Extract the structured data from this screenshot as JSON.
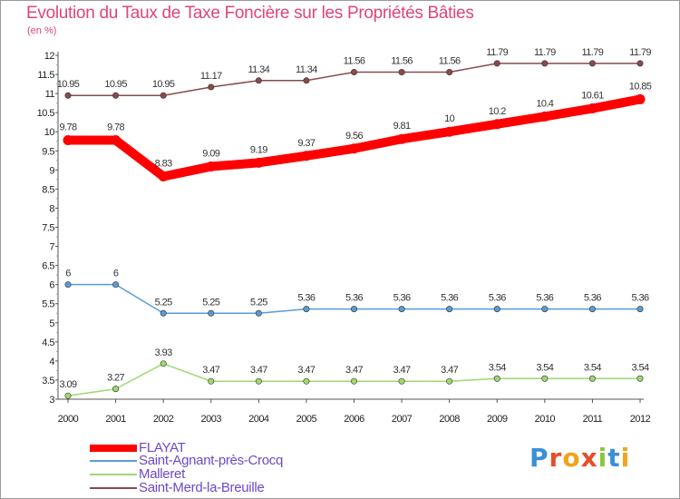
{
  "chart_data": {
    "type": "line",
    "title": "Evolution du Taux de Taxe Foncière sur les Propriétés Bâties",
    "ylabel": "(en %)",
    "xlabel": "",
    "x": [
      "2000",
      "2001",
      "2002",
      "2003",
      "2004",
      "2005",
      "2006",
      "2007",
      "2008",
      "2009",
      "2010",
      "2011",
      "2012"
    ],
    "ylim": [
      3,
      12
    ],
    "yticks": [
      "3",
      "3.5",
      "4",
      "4.5",
      "5",
      "5.5",
      "6",
      "6.5",
      "7",
      "7.5",
      "8",
      "8.5",
      "9",
      "9.5",
      "10",
      "10.5",
      "11",
      "11.5",
      "12"
    ],
    "grid": false,
    "legend_position": "bottom-left",
    "series": [
      {
        "name": "FLAYAT",
        "color": "#ff0000",
        "values": [
          9.78,
          9.78,
          8.83,
          9.09,
          9.19,
          9.37,
          9.56,
          9.81,
          10,
          10.2,
          10.4,
          10.61,
          10.85
        ],
        "labels": [
          "9.78",
          "9.78",
          "8.83",
          "9.09",
          "9.19",
          "9.37",
          "9.56",
          "9.81",
          "10",
          "10.2",
          "10.4",
          "10.61",
          "10.85"
        ]
      },
      {
        "name": "Saint-Agnant-près-Crocq",
        "color": "#5b9bd5",
        "values": [
          6,
          6,
          5.25,
          5.25,
          5.25,
          5.36,
          5.36,
          5.36,
          5.36,
          5.36,
          5.36,
          5.36,
          5.36
        ],
        "labels": [
          "6",
          "6",
          "5.25",
          "5.25",
          "5.25",
          "5.36",
          "5.36",
          "5.36",
          "5.36",
          "5.36",
          "5.36",
          "5.36",
          "5.36"
        ]
      },
      {
        "name": "Malleret",
        "color": "#9ed870",
        "values": [
          3.09,
          3.27,
          3.93,
          3.47,
          3.47,
          3.47,
          3.47,
          3.47,
          3.47,
          3.54,
          3.54,
          3.54,
          3.54
        ],
        "labels": [
          "3.09",
          "3.27",
          "3.93",
          "3.47",
          "3.47",
          "3.47",
          "3.47",
          "3.47",
          "3.47",
          "3.54",
          "3.54",
          "3.54",
          "3.54"
        ]
      },
      {
        "name": "Saint-Merd-la-Breuille",
        "color": "#8a4a4a",
        "values": [
          10.95,
          10.95,
          10.95,
          11.17,
          11.34,
          11.34,
          11.56,
          11.56,
          11.56,
          11.79,
          11.79,
          11.79,
          11.79
        ],
        "labels": [
          "10.95",
          "10.95",
          "10.95",
          "11.17",
          "11.34",
          "11.34",
          "11.56",
          "11.56",
          "11.56",
          "11.79",
          "11.79",
          "11.79",
          "11.79"
        ]
      }
    ]
  },
  "logo": {
    "letters": [
      {
        "ch": "P",
        "color": "#3a8fd8"
      },
      {
        "ch": "r",
        "color": "#e84d2a"
      },
      {
        "ch": "o",
        "color": "#f2a31b"
      },
      {
        "ch": "x",
        "color": "#e84d2a"
      },
      {
        "ch": "i",
        "color": "#8cc63f"
      },
      {
        "ch": "t",
        "color": "#3a8fd8"
      },
      {
        "ch": "i",
        "color": "#f2a31b"
      }
    ]
  }
}
